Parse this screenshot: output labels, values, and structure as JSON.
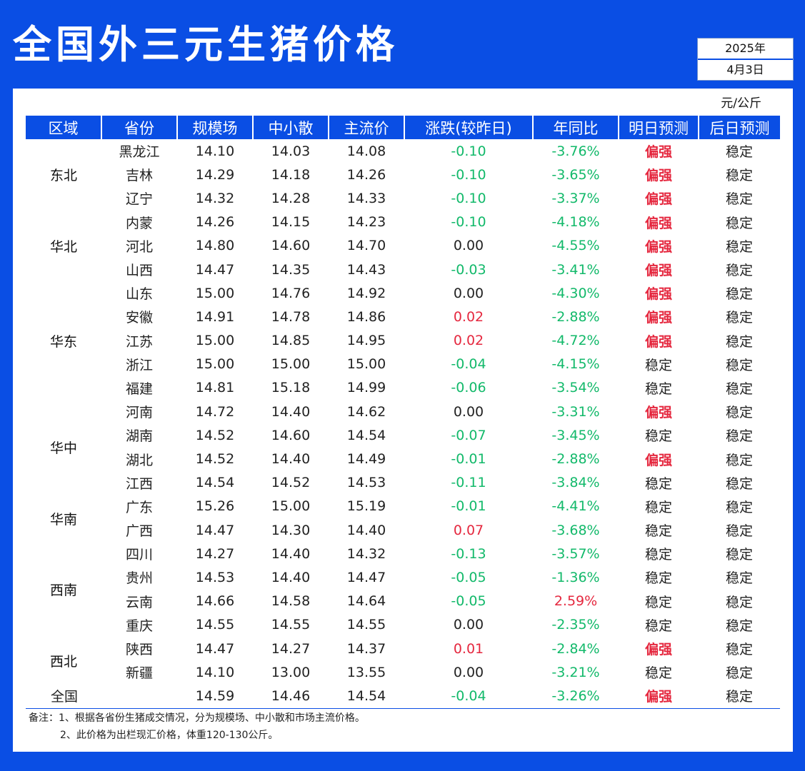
{
  "title": "全国外三元生猪价格",
  "date": {
    "year": "2025年",
    "day": "4月3日"
  },
  "unit": "元/公斤",
  "columns": [
    "区域",
    "省份",
    "规模场",
    "中小散",
    "主流价",
    "涨跌(较昨日)",
    "年同比",
    "明日预测",
    "后日预测"
  ],
  "regions": [
    {
      "name": "东北",
      "rows": 3
    },
    {
      "name": "华北",
      "rows": 3
    },
    {
      "name": "华东",
      "rows": 5
    },
    {
      "name": "华中",
      "rows": 4
    },
    {
      "name": "华南",
      "rows": 2
    },
    {
      "name": "西南",
      "rows": 4
    },
    {
      "name": "西北",
      "rows": 2
    }
  ],
  "rows": [
    {
      "province": "黑龙江",
      "large": "14.10",
      "small": "14.03",
      "main": "14.08",
      "change": "-0.10",
      "yoy": "-3.76%",
      "tomorrow": "偏强",
      "after": "稳定"
    },
    {
      "province": "吉林",
      "large": "14.29",
      "small": "14.18",
      "main": "14.26",
      "change": "-0.10",
      "yoy": "-3.65%",
      "tomorrow": "偏强",
      "after": "稳定"
    },
    {
      "province": "辽宁",
      "large": "14.32",
      "small": "14.28",
      "main": "14.33",
      "change": "-0.10",
      "yoy": "-3.37%",
      "tomorrow": "偏强",
      "after": "稳定"
    },
    {
      "province": "内蒙",
      "large": "14.26",
      "small": "14.15",
      "main": "14.23",
      "change": "-0.10",
      "yoy": "-4.18%",
      "tomorrow": "偏强",
      "after": "稳定"
    },
    {
      "province": "河北",
      "large": "14.80",
      "small": "14.60",
      "main": "14.70",
      "change": "0.00",
      "yoy": "-4.55%",
      "tomorrow": "偏强",
      "after": "稳定"
    },
    {
      "province": "山西",
      "large": "14.47",
      "small": "14.35",
      "main": "14.43",
      "change": "-0.03",
      "yoy": "-3.41%",
      "tomorrow": "偏强",
      "after": "稳定"
    },
    {
      "province": "山东",
      "large": "15.00",
      "small": "14.76",
      "main": "14.92",
      "change": "0.00",
      "yoy": "-4.30%",
      "tomorrow": "偏强",
      "after": "稳定"
    },
    {
      "province": "安徽",
      "large": "14.91",
      "small": "14.78",
      "main": "14.86",
      "change": "0.02",
      "yoy": "-2.88%",
      "tomorrow": "偏强",
      "after": "稳定"
    },
    {
      "province": "江苏",
      "large": "15.00",
      "small": "14.85",
      "main": "14.95",
      "change": "0.02",
      "yoy": "-4.72%",
      "tomorrow": "偏强",
      "after": "稳定"
    },
    {
      "province": "浙江",
      "large": "15.00",
      "small": "15.00",
      "main": "15.00",
      "change": "-0.04",
      "yoy": "-4.15%",
      "tomorrow": "稳定",
      "after": "稳定"
    },
    {
      "province": "福建",
      "large": "14.81",
      "small": "15.18",
      "main": "14.99",
      "change": "-0.06",
      "yoy": "-3.54%",
      "tomorrow": "稳定",
      "after": "稳定"
    },
    {
      "province": "河南",
      "large": "14.72",
      "small": "14.40",
      "main": "14.62",
      "change": "0.00",
      "yoy": "-3.31%",
      "tomorrow": "偏强",
      "after": "稳定"
    },
    {
      "province": "湖南",
      "large": "14.52",
      "small": "14.60",
      "main": "14.54",
      "change": "-0.07",
      "yoy": "-3.45%",
      "tomorrow": "稳定",
      "after": "稳定"
    },
    {
      "province": "湖北",
      "large": "14.52",
      "small": "14.40",
      "main": "14.49",
      "change": "-0.01",
      "yoy": "-2.88%",
      "tomorrow": "偏强",
      "after": "稳定"
    },
    {
      "province": "江西",
      "large": "14.54",
      "small": "14.52",
      "main": "14.53",
      "change": "-0.11",
      "yoy": "-3.84%",
      "tomorrow": "稳定",
      "after": "稳定"
    },
    {
      "province": "广东",
      "large": "15.26",
      "small": "15.00",
      "main": "15.19",
      "change": "-0.01",
      "yoy": "-4.41%",
      "tomorrow": "稳定",
      "after": "稳定"
    },
    {
      "province": "广西",
      "large": "14.47",
      "small": "14.30",
      "main": "14.40",
      "change": "0.07",
      "yoy": "-3.68%",
      "tomorrow": "稳定",
      "after": "稳定"
    },
    {
      "province": "四川",
      "large": "14.27",
      "small": "14.40",
      "main": "14.32",
      "change": "-0.13",
      "yoy": "-3.57%",
      "tomorrow": "稳定",
      "after": "稳定"
    },
    {
      "province": "贵州",
      "large": "14.53",
      "small": "14.40",
      "main": "14.47",
      "change": "-0.05",
      "yoy": "-1.36%",
      "tomorrow": "稳定",
      "after": "稳定"
    },
    {
      "province": "云南",
      "large": "14.66",
      "small": "14.58",
      "main": "14.64",
      "change": "-0.05",
      "yoy": "2.59%",
      "tomorrow": "稳定",
      "after": "稳定"
    },
    {
      "province": "重庆",
      "large": "14.55",
      "small": "14.55",
      "main": "14.55",
      "change": "0.00",
      "yoy": "-2.35%",
      "tomorrow": "稳定",
      "after": "稳定"
    },
    {
      "province": "陕西",
      "large": "14.47",
      "small": "14.27",
      "main": "14.37",
      "change": "0.01",
      "yoy": "-2.84%",
      "tomorrow": "偏强",
      "after": "稳定"
    },
    {
      "province": "新疆",
      "large": "14.10",
      "small": "13.00",
      "main": "13.55",
      "change": "0.00",
      "yoy": "-3.21%",
      "tomorrow": "稳定",
      "after": "稳定"
    }
  ],
  "total": {
    "label": "全国",
    "large": "14.59",
    "small": "14.46",
    "main": "14.54",
    "change": "-0.04",
    "yoy": "-3.26%",
    "tomorrow": "偏强",
    "after": "稳定"
  },
  "notes": [
    "备注：1、根据各省份生猪成交情况，分为规模场、中小散和市场主流价格。",
    "2、此价格为出栏现汇价格，体重120-130公斤。"
  ],
  "colors": {
    "brand_blue": "#0a4ee4",
    "down_green": "#12b96a",
    "up_red": "#e5283f"
  }
}
